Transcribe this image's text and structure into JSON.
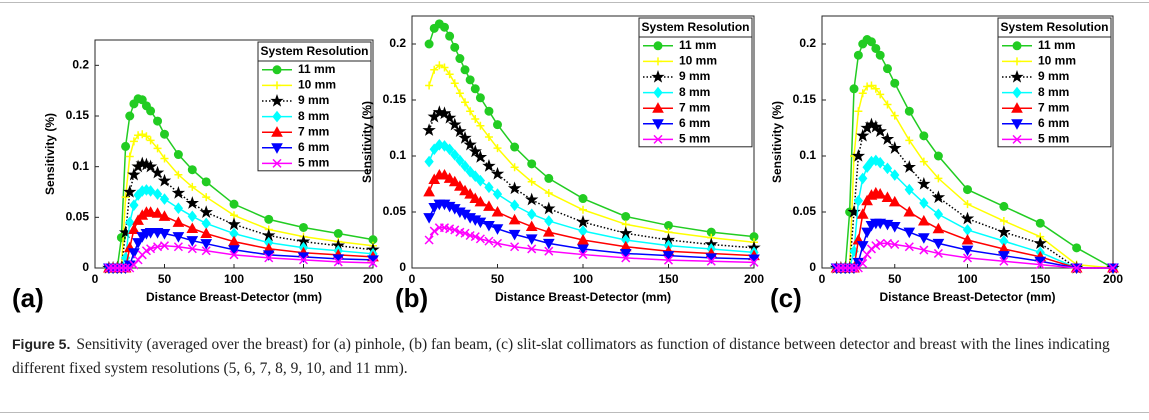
{
  "chart_data": [
    {
      "type": "line",
      "panel_label": "(a)",
      "xlabel": "Distance Breast-Detector (mm)",
      "ylabel": "Sensitivity (%)",
      "legend_title": "System Resolution",
      "legend": "upper right",
      "xlim": [
        0,
        200
      ],
      "ylim": [
        0,
        0.225
      ],
      "xticks": [
        0,
        50,
        100,
        150,
        200
      ],
      "yticks": [
        0,
        0.05,
        0.1,
        0.15,
        0.2
      ],
      "x": [
        10,
        13,
        16,
        19,
        22,
        25,
        28,
        31,
        34,
        37,
        40,
        45,
        50,
        60,
        70,
        80,
        100,
        125,
        150,
        175,
        200
      ],
      "series": [
        {
          "name": "11 mm",
          "color": "#22cc22",
          "marker": "circle",
          "dash": "solid",
          "values": [
            0,
            0,
            0,
            0.03,
            0.12,
            0.15,
            0.162,
            0.167,
            0.166,
            0.16,
            0.155,
            0.145,
            0.132,
            0.112,
            0.097,
            0.085,
            0.063,
            0.048,
            0.04,
            0.034,
            0.028
          ]
        },
        {
          "name": "10 mm",
          "color": "#ffff00",
          "marker": "plus",
          "dash": "solid",
          "values": [
            0,
            0,
            0,
            0,
            0.07,
            0.11,
            0.125,
            0.131,
            0.132,
            0.13,
            0.126,
            0.118,
            0.108,
            0.092,
            0.08,
            0.07,
            0.052,
            0.038,
            0.031,
            0.026,
            0.022
          ]
        },
        {
          "name": "9 mm",
          "color": "#000000",
          "marker": "star",
          "dash": "dotted",
          "values": [
            0,
            0,
            0,
            0,
            0.035,
            0.075,
            0.092,
            0.1,
            0.103,
            0.102,
            0.1,
            0.094,
            0.086,
            0.074,
            0.064,
            0.055,
            0.043,
            0.032,
            0.026,
            0.022,
            0.018
          ]
        },
        {
          "name": "8 mm",
          "color": "#00ffff",
          "marker": "diamond",
          "dash": "solid",
          "values": [
            0,
            0,
            0,
            0,
            0.01,
            0.045,
            0.062,
            0.072,
            0.076,
            0.077,
            0.076,
            0.073,
            0.068,
            0.059,
            0.051,
            0.044,
            0.034,
            0.025,
            0.02,
            0.017,
            0.014
          ]
        },
        {
          "name": "7 mm",
          "color": "#ff0000",
          "marker": "triangle-up",
          "dash": "solid",
          "values": [
            0,
            0,
            0,
            0,
            0,
            0.02,
            0.038,
            0.047,
            0.052,
            0.055,
            0.055,
            0.054,
            0.051,
            0.045,
            0.039,
            0.034,
            0.026,
            0.019,
            0.015,
            0.013,
            0.011
          ]
        },
        {
          "name": "6 mm",
          "color": "#0000ff",
          "marker": "triangle-down",
          "dash": "solid",
          "values": [
            0,
            0,
            0,
            0,
            0,
            0.003,
            0.015,
            0.025,
            0.031,
            0.034,
            0.035,
            0.035,
            0.034,
            0.031,
            0.027,
            0.024,
            0.018,
            0.013,
            0.011,
            0.009,
            0.008
          ]
        },
        {
          "name": "5 mm",
          "color": "#ff00ff",
          "marker": "x",
          "dash": "solid",
          "values": [
            0,
            0,
            0,
            0,
            0,
            0,
            0.003,
            0.008,
            0.013,
            0.017,
            0.019,
            0.021,
            0.022,
            0.021,
            0.019,
            0.017,
            0.013,
            0.01,
            0.008,
            0.006,
            0.005
          ]
        }
      ]
    },
    {
      "type": "line",
      "panel_label": "(b)",
      "xlabel": "Distance Breast-Detector (mm)",
      "ylabel": "Sensitivity (%)",
      "legend_title": "System Resolution",
      "legend": "upper right",
      "xlim": [
        0,
        200
      ],
      "ylim": [
        0,
        0.225
      ],
      "xticks": [
        0,
        50,
        100,
        150,
        200
      ],
      "yticks": [
        0,
        0.05,
        0.1,
        0.15,
        0.2
      ],
      "x": [
        10,
        13,
        16,
        19,
        22,
        25,
        28,
        31,
        34,
        37,
        40,
        45,
        50,
        60,
        70,
        80,
        100,
        125,
        150,
        175,
        200
      ],
      "series": [
        {
          "name": "11 mm",
          "color": "#22cc22",
          "marker": "circle",
          "dash": "solid",
          "values": [
            0.2,
            0.214,
            0.218,
            0.215,
            0.207,
            0.197,
            0.187,
            0.177,
            0.168,
            0.16,
            0.152,
            0.14,
            0.128,
            0.108,
            0.093,
            0.08,
            0.062,
            0.046,
            0.038,
            0.032,
            0.028
          ]
        },
        {
          "name": "10 mm",
          "color": "#ffff00",
          "marker": "plus",
          "dash": "solid",
          "values": [
            0.163,
            0.177,
            0.181,
            0.179,
            0.173,
            0.165,
            0.156,
            0.148,
            0.14,
            0.133,
            0.127,
            0.117,
            0.107,
            0.09,
            0.077,
            0.067,
            0.052,
            0.039,
            0.032,
            0.027,
            0.023
          ]
        },
        {
          "name": "9 mm",
          "color": "#000000",
          "marker": "star",
          "dash": "dotted",
          "values": [
            0.123,
            0.135,
            0.139,
            0.138,
            0.134,
            0.128,
            0.122,
            0.116,
            0.11,
            0.104,
            0.099,
            0.091,
            0.084,
            0.071,
            0.061,
            0.053,
            0.041,
            0.031,
            0.025,
            0.021,
            0.018
          ]
        },
        {
          "name": "8 mm",
          "color": "#00ffff",
          "marker": "diamond",
          "dash": "solid",
          "values": [
            0.095,
            0.106,
            0.11,
            0.109,
            0.106,
            0.101,
            0.096,
            0.091,
            0.086,
            0.082,
            0.078,
            0.072,
            0.066,
            0.056,
            0.048,
            0.042,
            0.033,
            0.025,
            0.02,
            0.017,
            0.014
          ]
        },
        {
          "name": "7 mm",
          "color": "#ff0000",
          "marker": "triangle-up",
          "dash": "solid",
          "values": [
            0.068,
            0.079,
            0.083,
            0.083,
            0.08,
            0.077,
            0.073,
            0.069,
            0.066,
            0.062,
            0.059,
            0.055,
            0.05,
            0.043,
            0.037,
            0.032,
            0.025,
            0.019,
            0.015,
            0.013,
            0.011
          ]
        },
        {
          "name": "6 mm",
          "color": "#0000ff",
          "marker": "triangle-down",
          "dash": "solid",
          "values": [
            0.045,
            0.054,
            0.057,
            0.057,
            0.055,
            0.053,
            0.05,
            0.048,
            0.045,
            0.043,
            0.041,
            0.038,
            0.035,
            0.03,
            0.026,
            0.022,
            0.017,
            0.013,
            0.011,
            0.009,
            0.008
          ]
        },
        {
          "name": "5 mm",
          "color": "#ff00ff",
          "marker": "x",
          "dash": "solid",
          "values": [
            0.025,
            0.033,
            0.036,
            0.036,
            0.035,
            0.034,
            0.032,
            0.031,
            0.029,
            0.028,
            0.026,
            0.024,
            0.022,
            0.019,
            0.017,
            0.015,
            0.012,
            0.009,
            0.007,
            0.006,
            0.005
          ]
        }
      ]
    },
    {
      "type": "line",
      "panel_label": "(c)",
      "xlabel": "Distance Breast-Detector (mm)",
      "ylabel": "Sensitivity (%)",
      "legend_title": "System Resolution",
      "legend": "upper right",
      "xlim": [
        0,
        200
      ],
      "ylim": [
        0,
        0.225
      ],
      "xticks": [
        0,
        50,
        100,
        150,
        200
      ],
      "yticks": [
        0,
        0.05,
        0.1,
        0.15,
        0.2
      ],
      "x": [
        10,
        13,
        16,
        19,
        22,
        25,
        28,
        31,
        34,
        37,
        40,
        45,
        50,
        60,
        70,
        80,
        100,
        125,
        150,
        175,
        200
      ],
      "series": [
        {
          "name": "11 mm",
          "color": "#22cc22",
          "marker": "circle",
          "dash": "solid",
          "values": [
            0,
            0,
            0,
            0.05,
            0.16,
            0.19,
            0.2,
            0.204,
            0.202,
            0.196,
            0.19,
            0.178,
            0.165,
            0.14,
            0.118,
            0.1,
            0.07,
            0.055,
            0.04,
            0.018,
            0
          ]
        },
        {
          "name": "10 mm",
          "color": "#ffff00",
          "marker": "plus",
          "dash": "solid",
          "values": [
            0,
            0,
            0,
            0,
            0.1,
            0.14,
            0.156,
            0.162,
            0.163,
            0.16,
            0.155,
            0.146,
            0.136,
            0.114,
            0.095,
            0.08,
            0.057,
            0.042,
            0.028,
            0.003,
            0
          ]
        },
        {
          "name": "9 mm",
          "color": "#000000",
          "marker": "star",
          "dash": "dotted",
          "values": [
            0,
            0,
            0,
            0,
            0.05,
            0.1,
            0.118,
            0.125,
            0.128,
            0.126,
            0.122,
            0.115,
            0.107,
            0.09,
            0.075,
            0.063,
            0.044,
            0.032,
            0.022,
            0,
            0
          ]
        },
        {
          "name": "8 mm",
          "color": "#00ffff",
          "marker": "diamond",
          "dash": "solid",
          "values": [
            0,
            0,
            0,
            0,
            0.015,
            0.06,
            0.08,
            0.09,
            0.095,
            0.096,
            0.094,
            0.089,
            0.083,
            0.07,
            0.058,
            0.048,
            0.034,
            0.024,
            0.014,
            0,
            0
          ]
        },
        {
          "name": "7 mm",
          "color": "#ff0000",
          "marker": "triangle-up",
          "dash": "solid",
          "values": [
            0,
            0,
            0,
            0,
            0,
            0.025,
            0.048,
            0.06,
            0.065,
            0.067,
            0.066,
            0.063,
            0.059,
            0.05,
            0.042,
            0.035,
            0.025,
            0.017,
            0.01,
            0,
            0
          ]
        },
        {
          "name": "6 mm",
          "color": "#0000ff",
          "marker": "triangle-down",
          "dash": "solid",
          "values": [
            0,
            0,
            0,
            0,
            0,
            0.005,
            0.02,
            0.032,
            0.038,
            0.04,
            0.04,
            0.039,
            0.037,
            0.032,
            0.027,
            0.022,
            0.016,
            0.011,
            0.006,
            0,
            0
          ]
        },
        {
          "name": "5 mm",
          "color": "#ff00ff",
          "marker": "x",
          "dash": "solid",
          "values": [
            0,
            0,
            0,
            0,
            0,
            0,
            0.004,
            0.012,
            0.017,
            0.02,
            0.022,
            0.022,
            0.021,
            0.019,
            0.016,
            0.013,
            0.009,
            0.006,
            0.003,
            0,
            0
          ]
        }
      ]
    }
  ],
  "caption": {
    "label": "Figure 5.",
    "text": "Sensitivity (averaged over the breast) for (a) pinhole, (b) fan beam, (c) slit-slat collimators as function of distance between detector and breast with the lines indicating different fixed system resolutions (5, 6, 7, 8, 9, 10, and 11 mm)."
  }
}
